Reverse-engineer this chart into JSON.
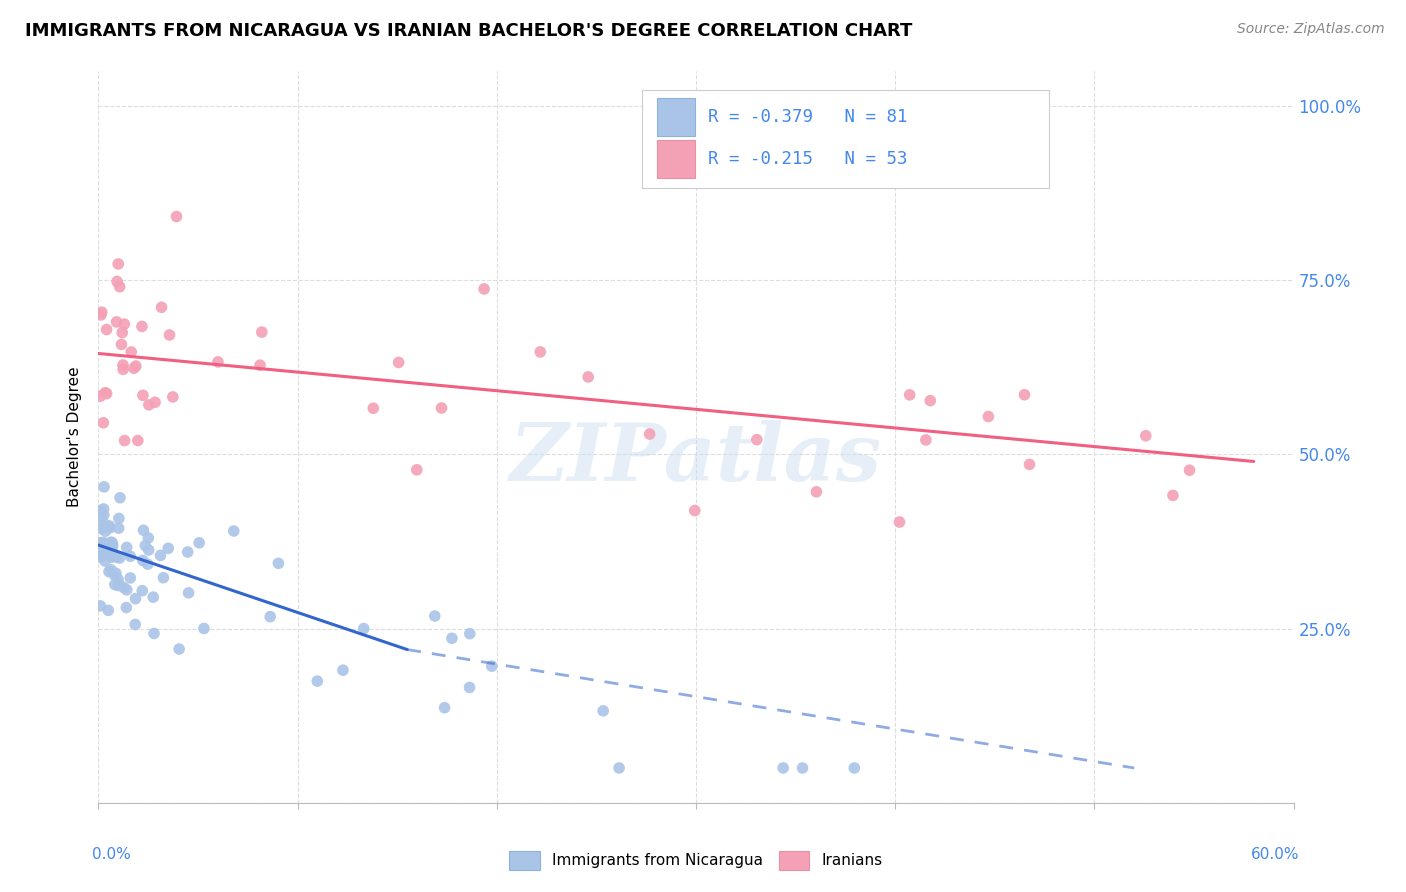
{
  "title": "IMMIGRANTS FROM NICARAGUA VS IRANIAN BACHELOR'S DEGREE CORRELATION CHART",
  "source": "Source: ZipAtlas.com",
  "ylabel": "Bachelor's Degree",
  "legend_blue_r": "-0.379",
  "legend_blue_n": "81",
  "legend_pink_r": "-0.215",
  "legend_pink_n": "53",
  "legend_label_blue": "Immigrants from Nicaragua",
  "legend_label_pink": "Iranians",
  "blue_color": "#aac4e8",
  "pink_color": "#f4a0b5",
  "blue_line_color": "#3366cc",
  "pink_line_color": "#f06080",
  "watermark": "ZIPatlas",
  "xlim": [
    0.0,
    0.6
  ],
  "ylim": [
    0.0,
    1.05
  ],
  "blue_trend_x0": 0.0,
  "blue_trend_y0": 0.37,
  "blue_trend_x1": 0.155,
  "blue_trend_y1": 0.22,
  "blue_trend_ext_x1": 0.52,
  "blue_trend_ext_y1": 0.05,
  "pink_trend_x0": 0.0,
  "pink_trend_y0": 0.645,
  "pink_trend_x1": 0.58,
  "pink_trend_y1": 0.49,
  "right_yticks": [
    1.0,
    0.75,
    0.5,
    0.25
  ],
  "right_yticklabels": [
    "100.0%",
    "75.0%",
    "50.0%",
    "25.0%"
  ],
  "xtick_label_left": "0.0%",
  "xtick_label_right": "60.0%",
  "grid_color": "#dddddd",
  "background_color": "#ffffff",
  "tick_color": "#4488ee",
  "title_fontsize": 13,
  "source_fontsize": 10
}
